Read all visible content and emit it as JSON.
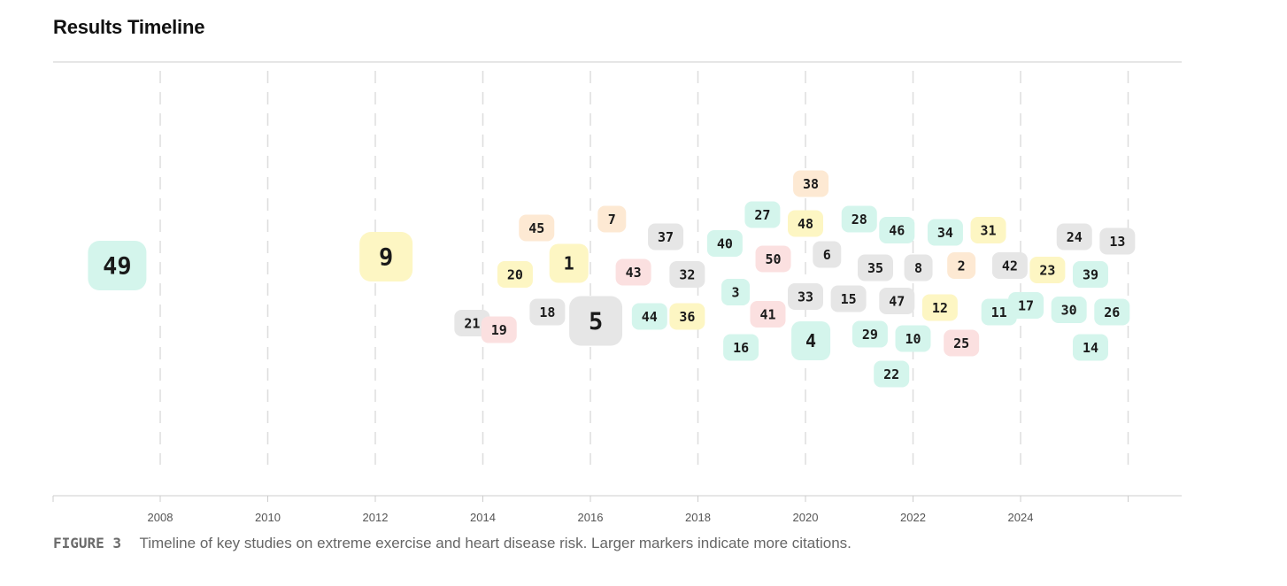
{
  "header": {
    "title": "Results Timeline"
  },
  "caption": {
    "figure_label": "FIGURE 3",
    "text": "Timeline of key studies on extreme exercise and heart disease risk. Larger markers indicate more citations."
  },
  "colors": {
    "mint": "#d4f5ec",
    "yellow": "#fdf6c3",
    "peach": "#fde9d3",
    "pink": "#fbe0e0",
    "gray": "#e6e6e6",
    "gridline": "#dddddd",
    "axis": "#cccccc"
  },
  "chart_data": {
    "type": "scatter",
    "title": "Results Timeline",
    "xlabel": "",
    "ylabel": "",
    "xlim": [
      2006,
      2027
    ],
    "x_ticks": [
      2008,
      2010,
      2012,
      2014,
      2016,
      2018,
      2020,
      2022,
      2024
    ],
    "grid": "vertical dashed",
    "points": [
      {
        "label": "49",
        "year": 2007.2,
        "row": 0.2,
        "size": 3,
        "color": "mint"
      },
      {
        "label": "9",
        "year": 2012.2,
        "row": 0.4,
        "size": 3,
        "color": "yellow"
      },
      {
        "label": "21",
        "year": 2013.8,
        "row": -1.1,
        "size": 1,
        "color": "gray"
      },
      {
        "label": "45",
        "year": 2015.0,
        "row": 1.05,
        "size": 1,
        "color": "peach"
      },
      {
        "label": "20",
        "year": 2014.6,
        "row": 0.0,
        "size": 1,
        "color": "yellow"
      },
      {
        "label": "19",
        "year": 2014.3,
        "row": -1.25,
        "size": 1,
        "color": "pink"
      },
      {
        "label": "18",
        "year": 2015.2,
        "row": -0.85,
        "size": 1,
        "color": "gray"
      },
      {
        "label": "1",
        "year": 2015.6,
        "row": 0.25,
        "size": 2,
        "color": "yellow"
      },
      {
        "label": "7",
        "year": 2016.4,
        "row": 1.25,
        "size": 1,
        "color": "peach"
      },
      {
        "label": "5",
        "year": 2016.1,
        "row": -1.05,
        "size": 3,
        "color": "gray"
      },
      {
        "label": "43",
        "year": 2016.8,
        "row": 0.05,
        "size": 1,
        "color": "pink"
      },
      {
        "label": "37",
        "year": 2017.4,
        "row": 0.85,
        "size": 1,
        "color": "gray"
      },
      {
        "label": "32",
        "year": 2017.8,
        "row": 0.0,
        "size": 1,
        "color": "gray"
      },
      {
        "label": "44",
        "year": 2017.1,
        "row": -0.95,
        "size": 1,
        "color": "mint"
      },
      {
        "label": "36",
        "year": 2017.8,
        "row": -0.95,
        "size": 1,
        "color": "yellow"
      },
      {
        "label": "40",
        "year": 2018.5,
        "row": 0.7,
        "size": 1,
        "color": "mint"
      },
      {
        "label": "3",
        "year": 2018.7,
        "row": -0.4,
        "size": 1,
        "color": "mint"
      },
      {
        "label": "16",
        "year": 2018.8,
        "row": -1.65,
        "size": 1,
        "color": "mint"
      },
      {
        "label": "27",
        "year": 2019.2,
        "row": 1.35,
        "size": 1,
        "color": "mint"
      },
      {
        "label": "50",
        "year": 2019.4,
        "row": 0.35,
        "size": 1,
        "color": "pink"
      },
      {
        "label": "41",
        "year": 2019.3,
        "row": -0.9,
        "size": 1,
        "color": "pink"
      },
      {
        "label": "38",
        "year": 2020.1,
        "row": 2.05,
        "size": 1,
        "color": "peach"
      },
      {
        "label": "48",
        "year": 2020.0,
        "row": 1.15,
        "size": 1,
        "color": "yellow"
      },
      {
        "label": "6",
        "year": 2020.4,
        "row": 0.45,
        "size": 1,
        "color": "gray"
      },
      {
        "label": "33",
        "year": 2020.0,
        "row": -0.5,
        "size": 1,
        "color": "gray"
      },
      {
        "label": "4",
        "year": 2020.1,
        "row": -1.5,
        "size": 2,
        "color": "mint"
      },
      {
        "label": "28",
        "year": 2021.0,
        "row": 1.25,
        "size": 1,
        "color": "mint"
      },
      {
        "label": "35",
        "year": 2021.3,
        "row": 0.15,
        "size": 1,
        "color": "gray"
      },
      {
        "label": "15",
        "year": 2020.8,
        "row": -0.55,
        "size": 1,
        "color": "gray"
      },
      {
        "label": "29",
        "year": 2021.2,
        "row": -1.35,
        "size": 1,
        "color": "mint"
      },
      {
        "label": "22",
        "year": 2021.6,
        "row": -2.25,
        "size": 1,
        "color": "mint"
      },
      {
        "label": "46",
        "year": 2021.7,
        "row": 1.0,
        "size": 1,
        "color": "mint"
      },
      {
        "label": "8",
        "year": 2022.1,
        "row": 0.15,
        "size": 1,
        "color": "gray"
      },
      {
        "label": "47",
        "year": 2021.7,
        "row": -0.6,
        "size": 1,
        "color": "gray"
      },
      {
        "label": "10",
        "year": 2022.0,
        "row": -1.45,
        "size": 1,
        "color": "mint"
      },
      {
        "label": "34",
        "year": 2022.6,
        "row": 0.95,
        "size": 1,
        "color": "mint"
      },
      {
        "label": "2",
        "year": 2022.9,
        "row": 0.2,
        "size": 1,
        "color": "peach"
      },
      {
        "label": "12",
        "year": 2022.5,
        "row": -0.75,
        "size": 1,
        "color": "yellow"
      },
      {
        "label": "25",
        "year": 2022.9,
        "row": -1.55,
        "size": 1,
        "color": "pink"
      },
      {
        "label": "31",
        "year": 2023.4,
        "row": 1.0,
        "size": 1,
        "color": "yellow"
      },
      {
        "label": "42",
        "year": 2023.8,
        "row": 0.2,
        "size": 1,
        "color": "gray"
      },
      {
        "label": "11",
        "year": 2023.6,
        "row": -0.85,
        "size": 1,
        "color": "mint"
      },
      {
        "label": "17",
        "year": 2024.1,
        "row": -0.7,
        "size": 1,
        "color": "mint"
      },
      {
        "label": "23",
        "year": 2024.5,
        "row": 0.1,
        "size": 1,
        "color": "yellow"
      },
      {
        "label": "24",
        "year": 2025.0,
        "row": 0.85,
        "size": 1,
        "color": "gray"
      },
      {
        "label": "30",
        "year": 2024.9,
        "row": -0.8,
        "size": 1,
        "color": "mint"
      },
      {
        "label": "39",
        "year": 2025.3,
        "row": 0.0,
        "size": 1,
        "color": "mint"
      },
      {
        "label": "13",
        "year": 2025.8,
        "row": 0.75,
        "size": 1,
        "color": "gray"
      },
      {
        "label": "26",
        "year": 2025.7,
        "row": -0.85,
        "size": 1,
        "color": "mint"
      },
      {
        "label": "14",
        "year": 2025.3,
        "row": -1.65,
        "size": 1,
        "color": "mint"
      }
    ]
  }
}
